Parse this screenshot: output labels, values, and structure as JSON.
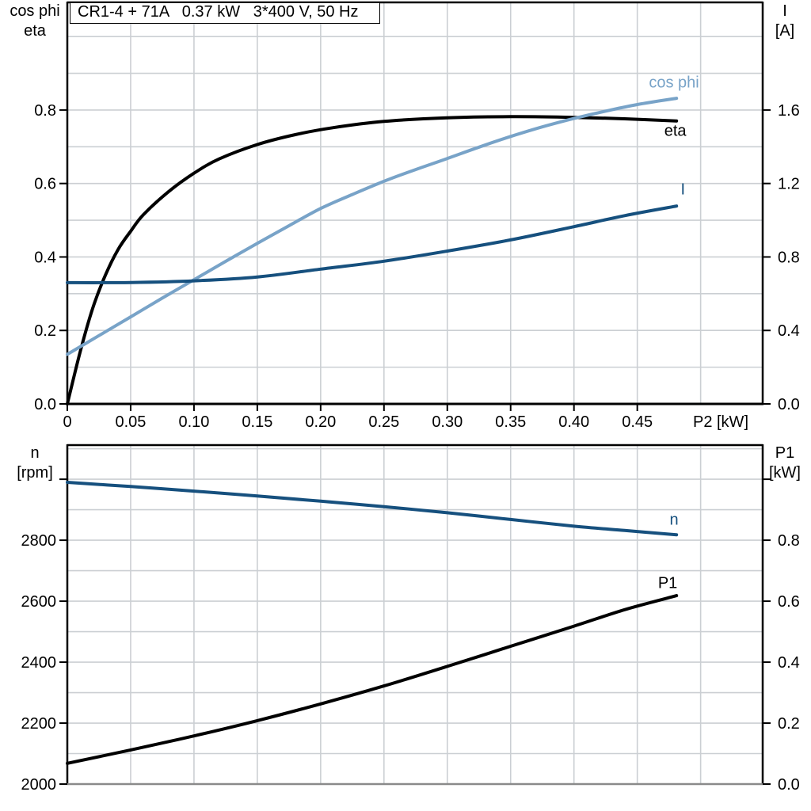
{
  "colors": {
    "black": "#000000",
    "light_blue": "#78A3C8",
    "dark_blue": "#16507E",
    "grid": "#CBCFD3",
    "frame": "#000000",
    "bottom_frame_gray": "#8A8A8A"
  },
  "chart_data": [
    {
      "id": "top-chart",
      "type": "line",
      "title": "CR1-4 + 71A   0.37 kW   3*400 V, 50 Hz",
      "x_axis": {
        "label": "P2 [kW]",
        "range": [
          0,
          0.549
        ],
        "tick_values": [
          0,
          0.05,
          0.1,
          0.15,
          0.2,
          0.25,
          0.3,
          0.35,
          0.4,
          0.45
        ],
        "tick_labels": [
          "0",
          "0.05",
          "0.10",
          "0.15",
          "0.20",
          "0.25",
          "0.30",
          "0.35",
          "0.40",
          "0.45"
        ],
        "grid": {
          "from": 0.05,
          "step": 0.05,
          "to": 0.5
        }
      },
      "left_axis": {
        "label_lines": [
          "cos phi",
          "eta"
        ],
        "range": [
          0,
          1.093
        ],
        "tick_values": [
          0,
          0.2,
          0.4,
          0.6,
          0.8
        ],
        "tick_labels": [
          "0.0",
          "0.2",
          "0.4",
          "0.6",
          "0.8"
        ],
        "unlabeled_ticks": [],
        "grid": {
          "from": 0.1,
          "step": 0.1,
          "to": 1.0
        }
      },
      "right_axis": {
        "label_lines": [
          "I",
          "[A]"
        ],
        "range": [
          0,
          2.186
        ],
        "tick_values": [
          0,
          0.4,
          0.8,
          1.2,
          1.6
        ],
        "tick_labels": [
          "0.0",
          "0.4",
          "0.8",
          "1.2",
          "1.6"
        ],
        "unlabeled_ticks": []
      },
      "series": [
        {
          "key": "eta",
          "label": "eta",
          "axis": "left",
          "color": "#000000",
          "label_anchor": [
            0.48,
            0.742
          ],
          "points": [
            [
              0,
              0
            ],
            [
              0.01,
              0.14
            ],
            [
              0.02,
              0.26
            ],
            [
              0.03,
              0.35
            ],
            [
              0.04,
              0.42
            ],
            [
              0.05,
              0.47
            ],
            [
              0.06,
              0.515
            ],
            [
              0.08,
              0.578
            ],
            [
              0.1,
              0.628
            ],
            [
              0.12,
              0.667
            ],
            [
              0.15,
              0.706
            ],
            [
              0.18,
              0.733
            ],
            [
              0.21,
              0.752
            ],
            [
              0.25,
              0.769
            ],
            [
              0.3,
              0.779
            ],
            [
              0.35,
              0.782
            ],
            [
              0.4,
              0.78
            ],
            [
              0.44,
              0.776
            ],
            [
              0.481,
              0.77
            ]
          ]
        },
        {
          "key": "cosphi",
          "label": "cos phi",
          "axis": "left",
          "color": "#78A3C8",
          "label_anchor": [
            0.479,
            0.873
          ],
          "points": [
            [
              0,
              0.135
            ],
            [
              0.025,
              0.186
            ],
            [
              0.05,
              0.237
            ],
            [
              0.075,
              0.288
            ],
            [
              0.1,
              0.338
            ],
            [
              0.125,
              0.388
            ],
            [
              0.15,
              0.437
            ],
            [
              0.175,
              0.485
            ],
            [
              0.2,
              0.532
            ],
            [
              0.225,
              0.57
            ],
            [
              0.25,
              0.606
            ],
            [
              0.275,
              0.638
            ],
            [
              0.3,
              0.668
            ],
            [
              0.325,
              0.699
            ],
            [
              0.35,
              0.728
            ],
            [
              0.375,
              0.754
            ],
            [
              0.4,
              0.777
            ],
            [
              0.425,
              0.797
            ],
            [
              0.45,
              0.815
            ],
            [
              0.481,
              0.832
            ]
          ]
        },
        {
          "key": "current",
          "label": "I",
          "axis": "right",
          "color": "#16507E",
          "label_anchor": [
            0.486,
            1.164
          ],
          "points": [
            [
              0,
              0.66
            ],
            [
              0.05,
              0.661
            ],
            [
              0.1,
              0.67
            ],
            [
              0.15,
              0.691
            ],
            [
              0.2,
              0.734
            ],
            [
              0.25,
              0.777
            ],
            [
              0.3,
              0.832
            ],
            [
              0.35,
              0.893
            ],
            [
              0.4,
              0.965
            ],
            [
              0.44,
              1.025
            ],
            [
              0.481,
              1.077
            ]
          ]
        }
      ]
    },
    {
      "id": "bottom-chart",
      "type": "line",
      "title": "",
      "x_axis": {
        "label": "",
        "range": [
          0,
          0.549
        ],
        "tick_values": [],
        "tick_labels": [],
        "grid": {
          "from": 0.05,
          "step": 0.05,
          "to": 0.5
        }
      },
      "left_axis": {
        "label_lines": [
          "n",
          "[rpm]"
        ],
        "range": [
          2000,
          3112
        ],
        "tick_values": [
          2000,
          2200,
          2400,
          2600,
          2800
        ],
        "tick_labels": [
          "2000",
          "2200",
          "2400",
          "2600",
          "2800"
        ],
        "unlabeled_ticks": [
          3000
        ],
        "grid": {
          "from": 2100,
          "step": 100,
          "to": 3100
        }
      },
      "right_axis": {
        "label_lines": [
          "P1",
          "[kW]"
        ],
        "range": [
          0,
          1.112
        ],
        "tick_values": [
          0,
          0.2,
          0.4,
          0.6,
          0.8
        ],
        "tick_labels": [
          "0.0",
          "0.2",
          "0.4",
          "0.6",
          "0.8"
        ],
        "unlabeled_ticks": [
          1.0
        ]
      },
      "series": [
        {
          "key": "n",
          "label": "n",
          "axis": "left",
          "color": "#16507E",
          "label_anchor": [
            0.479,
            2865
          ],
          "points": [
            [
              0,
              2990
            ],
            [
              0.05,
              2976
            ],
            [
              0.1,
              2961
            ],
            [
              0.15,
              2945
            ],
            [
              0.2,
              2928
            ],
            [
              0.25,
              2910
            ],
            [
              0.3,
              2890
            ],
            [
              0.35,
              2868
            ],
            [
              0.4,
              2846
            ],
            [
              0.44,
              2832
            ],
            [
              0.481,
              2818
            ]
          ]
        },
        {
          "key": "p1",
          "label": "P1",
          "axis": "right",
          "color": "#000000",
          "label_anchor": [
            0.474,
            0.657
          ],
          "points": [
            [
              0,
              0.068
            ],
            [
              0.05,
              0.112
            ],
            [
              0.1,
              0.158
            ],
            [
              0.15,
              0.208
            ],
            [
              0.2,
              0.263
            ],
            [
              0.25,
              0.322
            ],
            [
              0.3,
              0.386
            ],
            [
              0.35,
              0.452
            ],
            [
              0.4,
              0.518
            ],
            [
              0.44,
              0.572
            ],
            [
              0.481,
              0.618
            ]
          ]
        }
      ]
    }
  ]
}
